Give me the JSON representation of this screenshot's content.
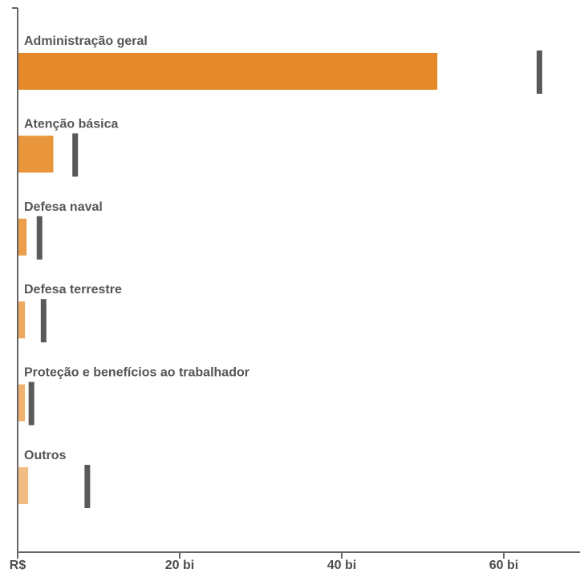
{
  "chart_data": {
    "type": "bar",
    "categories": [
      "Administração geral",
      "Atenção básica",
      "Defesa naval",
      "Defesa terrestre",
      "Proteção e benefícios ao trabalhador",
      "Outros"
    ],
    "series": [
      {
        "values": [
          51.8,
          4.4,
          1.1,
          0.9,
          0.9,
          1.3
        ]
      },
      {
        "values": [
          64.4,
          7.1,
          2.7,
          3.2,
          1.7,
          8.6
        ]
      }
    ],
    "bar_colors": [
      "#e6892a",
      "#e8953b",
      "#eb9f4c",
      "#eea85d",
      "#f0b26f",
      "#f2bc85"
    ],
    "marker_color": "#5a5a5a",
    "xlim": [
      0,
      69
    ],
    "x_ticks": [
      0,
      20,
      40,
      60
    ],
    "x_tick_labels": [
      "R$",
      "20 bi",
      "40 bi",
      "60 bi"
    ],
    "grid": false,
    "legend": "none"
  }
}
